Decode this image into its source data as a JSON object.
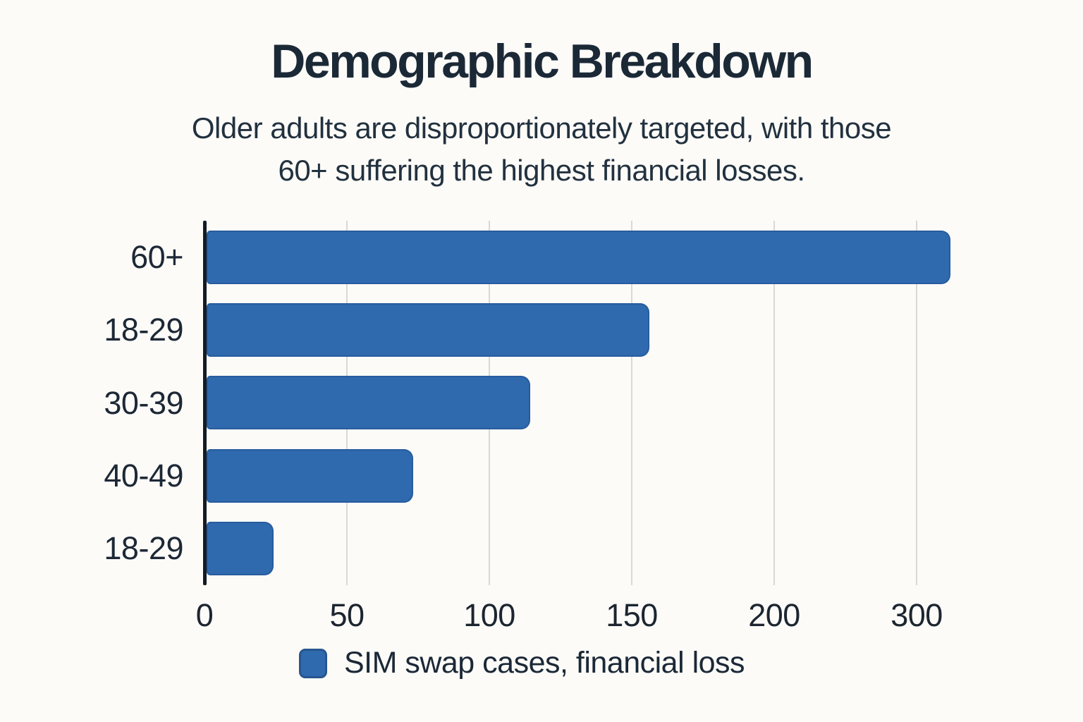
{
  "header": {
    "title": "Demographic Breakdown",
    "subtitle_lines": [
      "Older adults are disproportionately targeted, with those",
      "60+ suffering the highest financial losses."
    ]
  },
  "chart_data": {
    "type": "bar",
    "orientation": "horizontal",
    "title": "Demographic Breakdown",
    "categories": [
      "60+",
      "18-29",
      "30-39",
      "40-49",
      "18-29"
    ],
    "values": [
      310,
      155,
      113,
      72,
      23
    ],
    "series_label": "SIM swap cases, financial loss",
    "x_ticks": [
      "0",
      "50",
      "100",
      "150",
      "200",
      "300"
    ],
    "xlim": [
      0,
      330
    ],
    "grid": true,
    "legend_position": "bottom",
    "bar_color": "#2f69ae",
    "bar_border_color": "#26568f",
    "gridline_color": "#d9d8d4",
    "axis_color": "#141b24",
    "bar_end_fraction": [
      0.902,
      0.537,
      0.392,
      0.25,
      0.081
    ]
  },
  "legend": {
    "label": "SIM swap cases, financial loss"
  }
}
